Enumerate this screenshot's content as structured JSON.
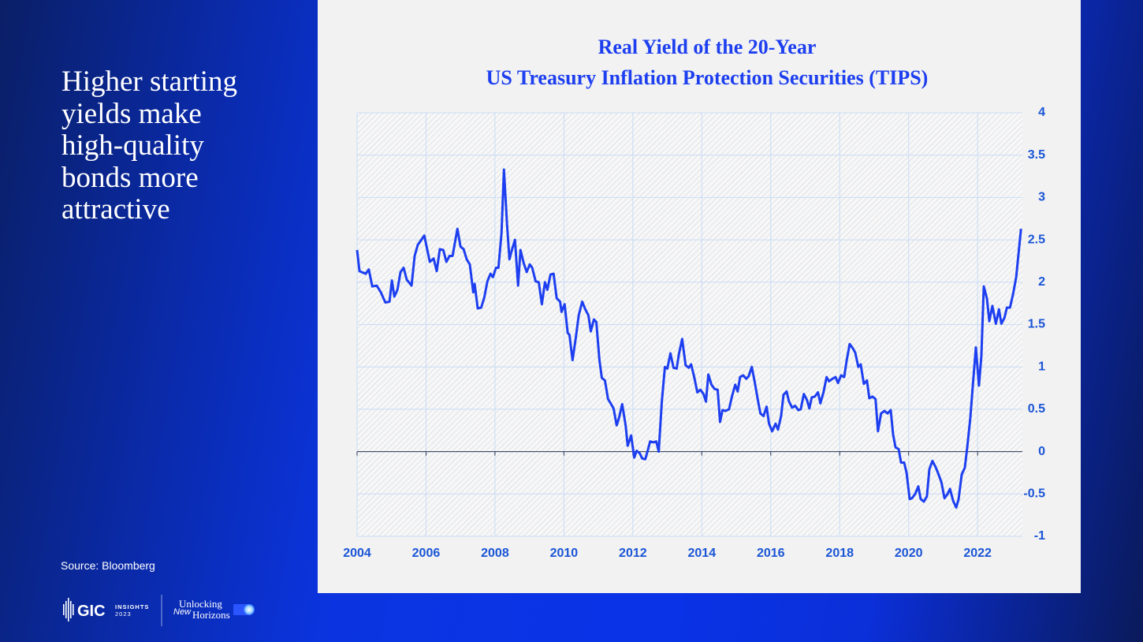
{
  "slide": {
    "headline": [
      "Higher starting",
      "yields make",
      "high-quality",
      "bonds more",
      "attractive"
    ],
    "source": "Source: Bloomberg",
    "logo": {
      "brand": "GIC",
      "insights": "INSIGHTS",
      "year": "2023",
      "tagline_1": "Unlocking",
      "tagline_2": "New",
      "tagline_3": "Horizons"
    }
  },
  "chart_data": {
    "type": "line",
    "title": [
      "Real Yield of the 20-Year",
      "US Treasury Inflation Protection Securities (TIPS)"
    ],
    "x": [
      2004.0,
      2004.07,
      2004.25,
      2004.34,
      2004.44,
      2004.57,
      2004.69,
      2004.82,
      2004.94,
      2005.01,
      2005.08,
      2005.17,
      2005.26,
      2005.35,
      2005.44,
      2005.58,
      2005.67,
      2005.76,
      2005.95,
      2006.11,
      2006.22,
      2006.31,
      2006.4,
      2006.5,
      2006.59,
      2006.68,
      2006.77,
      2006.91,
      2007.0,
      2007.09,
      2007.18,
      2007.27,
      2007.37,
      2007.41,
      2007.5,
      2007.6,
      2007.69,
      2007.78,
      2007.87,
      2007.94,
      2008.03,
      2008.1,
      2008.19,
      2008.26,
      2008.35,
      2008.42,
      2008.49,
      2008.58,
      2008.67,
      2008.74,
      2008.83,
      2008.92,
      2009.01,
      2009.08,
      2009.18,
      2009.27,
      2009.36,
      2009.45,
      2009.52,
      2009.61,
      2009.7,
      2009.79,
      2009.89,
      2009.93,
      2010.02,
      2010.11,
      2010.16,
      2010.25,
      2010.34,
      2010.43,
      2010.53,
      2010.62,
      2010.71,
      2010.78,
      2010.87,
      2010.94,
      2011.03,
      2011.1,
      2011.19,
      2011.28,
      2011.37,
      2011.44,
      2011.53,
      2011.6,
      2011.69,
      2011.79,
      2011.85,
      2011.95,
      2012.04,
      2012.11,
      2012.2,
      2012.27,
      2012.36,
      2012.43,
      2012.5,
      2012.59,
      2012.68,
      2012.75,
      2012.84,
      2012.93,
      2013.0,
      2013.09,
      2013.18,
      2013.27,
      2013.34,
      2013.43,
      2013.53,
      2013.62,
      2013.69,
      2013.78,
      2013.87,
      2013.96,
      2014.05,
      2014.12,
      2014.19,
      2014.28,
      2014.37,
      2014.46,
      2014.53,
      2014.6,
      2014.69,
      2014.79,
      2014.88,
      2014.97,
      2015.04,
      2015.11,
      2015.2,
      2015.29,
      2015.36,
      2015.45,
      2015.54,
      2015.63,
      2015.7,
      2015.79,
      2015.88,
      2015.95,
      2016.04,
      2016.14,
      2016.21,
      2016.3,
      2016.37,
      2016.46,
      2016.53,
      2016.62,
      2016.71,
      2016.8,
      2016.87,
      2016.96,
      2017.05,
      2017.12,
      2017.19,
      2017.28,
      2017.37,
      2017.44,
      2017.53,
      2017.62,
      2017.69,
      2017.79,
      2017.88,
      2017.95,
      2018.04,
      2018.13,
      2018.2,
      2018.29,
      2018.38,
      2018.45,
      2018.54,
      2018.61,
      2018.7,
      2018.79,
      2018.86,
      2018.95,
      2019.04,
      2019.11,
      2019.2,
      2019.3,
      2019.39,
      2019.48,
      2019.55,
      2019.62,
      2019.71,
      2019.78,
      2019.87,
      2019.94,
      2020.03,
      2020.1,
      2020.19,
      2020.28,
      2020.35,
      2020.44,
      2020.53,
      2020.6,
      2020.69,
      2020.78,
      2020.85,
      2020.95,
      2021.04,
      2021.13,
      2021.2,
      2021.29,
      2021.38,
      2021.45,
      2021.54,
      2021.63,
      2021.7,
      2021.79,
      2021.86,
      2021.95,
      2022.04,
      2022.11,
      2022.18,
      2022.27,
      2022.34,
      2022.43,
      2022.53,
      2022.62,
      2022.69,
      2022.78,
      2022.85,
      2022.94,
      2023.03,
      2023.12,
      2023.26
    ],
    "values": [
      2.38,
      2.13,
      2.1,
      2.15,
      1.95,
      1.96,
      1.88,
      1.76,
      1.77,
      2.02,
      1.83,
      1.91,
      2.12,
      2.17,
      2.03,
      1.96,
      2.31,
      2.44,
      2.55,
      2.24,
      2.28,
      2.13,
      2.39,
      2.38,
      2.24,
      2.31,
      2.31,
      2.63,
      2.42,
      2.39,
      2.27,
      2.21,
      1.88,
      1.98,
      1.69,
      1.7,
      1.82,
      2.01,
      2.1,
      2.06,
      2.17,
      2.17,
      2.58,
      3.33,
      2.68,
      2.27,
      2.38,
      2.5,
      1.96,
      2.38,
      2.23,
      2.12,
      2.21,
      2.17,
      2.01,
      2.0,
      1.74,
      2.0,
      1.91,
      2.09,
      2.1,
      1.81,
      1.77,
      1.65,
      1.74,
      1.4,
      1.38,
      1.08,
      1.33,
      1.61,
      1.77,
      1.68,
      1.61,
      1.42,
      1.56,
      1.53,
      1.08,
      0.87,
      0.84,
      0.62,
      0.56,
      0.51,
      0.31,
      0.4,
      0.56,
      0.31,
      0.07,
      0.19,
      -0.07,
      0.01,
      -0.02,
      -0.08,
      -0.09,
      0.01,
      0.12,
      0.11,
      0.12,
      0.0,
      0.59,
      1.0,
      0.98,
      1.16,
      0.99,
      0.98,
      1.16,
      1.33,
      1.02,
      0.99,
      1.03,
      0.88,
      0.7,
      0.73,
      0.68,
      0.59,
      0.91,
      0.79,
      0.74,
      0.73,
      0.35,
      0.49,
      0.48,
      0.5,
      0.66,
      0.79,
      0.71,
      0.88,
      0.9,
      0.86,
      0.89,
      1.0,
      0.81,
      0.6,
      0.45,
      0.42,
      0.53,
      0.33,
      0.24,
      0.33,
      0.26,
      0.42,
      0.67,
      0.71,
      0.59,
      0.52,
      0.54,
      0.49,
      0.5,
      0.68,
      0.61,
      0.51,
      0.64,
      0.65,
      0.7,
      0.57,
      0.7,
      0.88,
      0.83,
      0.86,
      0.88,
      0.81,
      0.9,
      0.88,
      1.07,
      1.27,
      1.22,
      1.17,
      1.0,
      1.03,
      0.8,
      0.84,
      0.63,
      0.65,
      0.62,
      0.24,
      0.45,
      0.48,
      0.45,
      0.49,
      0.2,
      0.05,
      0.03,
      -0.13,
      -0.13,
      -0.25,
      -0.56,
      -0.55,
      -0.5,
      -0.41,
      -0.56,
      -0.59,
      -0.53,
      -0.21,
      -0.11,
      -0.18,
      -0.25,
      -0.36,
      -0.55,
      -0.5,
      -0.44,
      -0.58,
      -0.66,
      -0.56,
      -0.27,
      -0.19,
      0.05,
      0.4,
      0.77,
      1.23,
      0.78,
      1.13,
      1.95,
      1.81,
      1.54,
      1.72,
      1.51,
      1.68,
      1.51,
      1.58,
      1.7,
      1.7,
      1.86,
      2.06,
      2.63
    ],
    "color": "#1d3ff0",
    "xlim": [
      2004,
      2023.3
    ],
    "xticks": [
      2004,
      2006,
      2008,
      2010,
      2012,
      2014,
      2016,
      2018,
      2020,
      2022
    ],
    "ylim": [
      -1,
      4
    ],
    "yticks": [
      -1,
      -0.5,
      0,
      0.5,
      1,
      1.5,
      2,
      2.5,
      3,
      3.5,
      4
    ],
    "grid": true
  }
}
